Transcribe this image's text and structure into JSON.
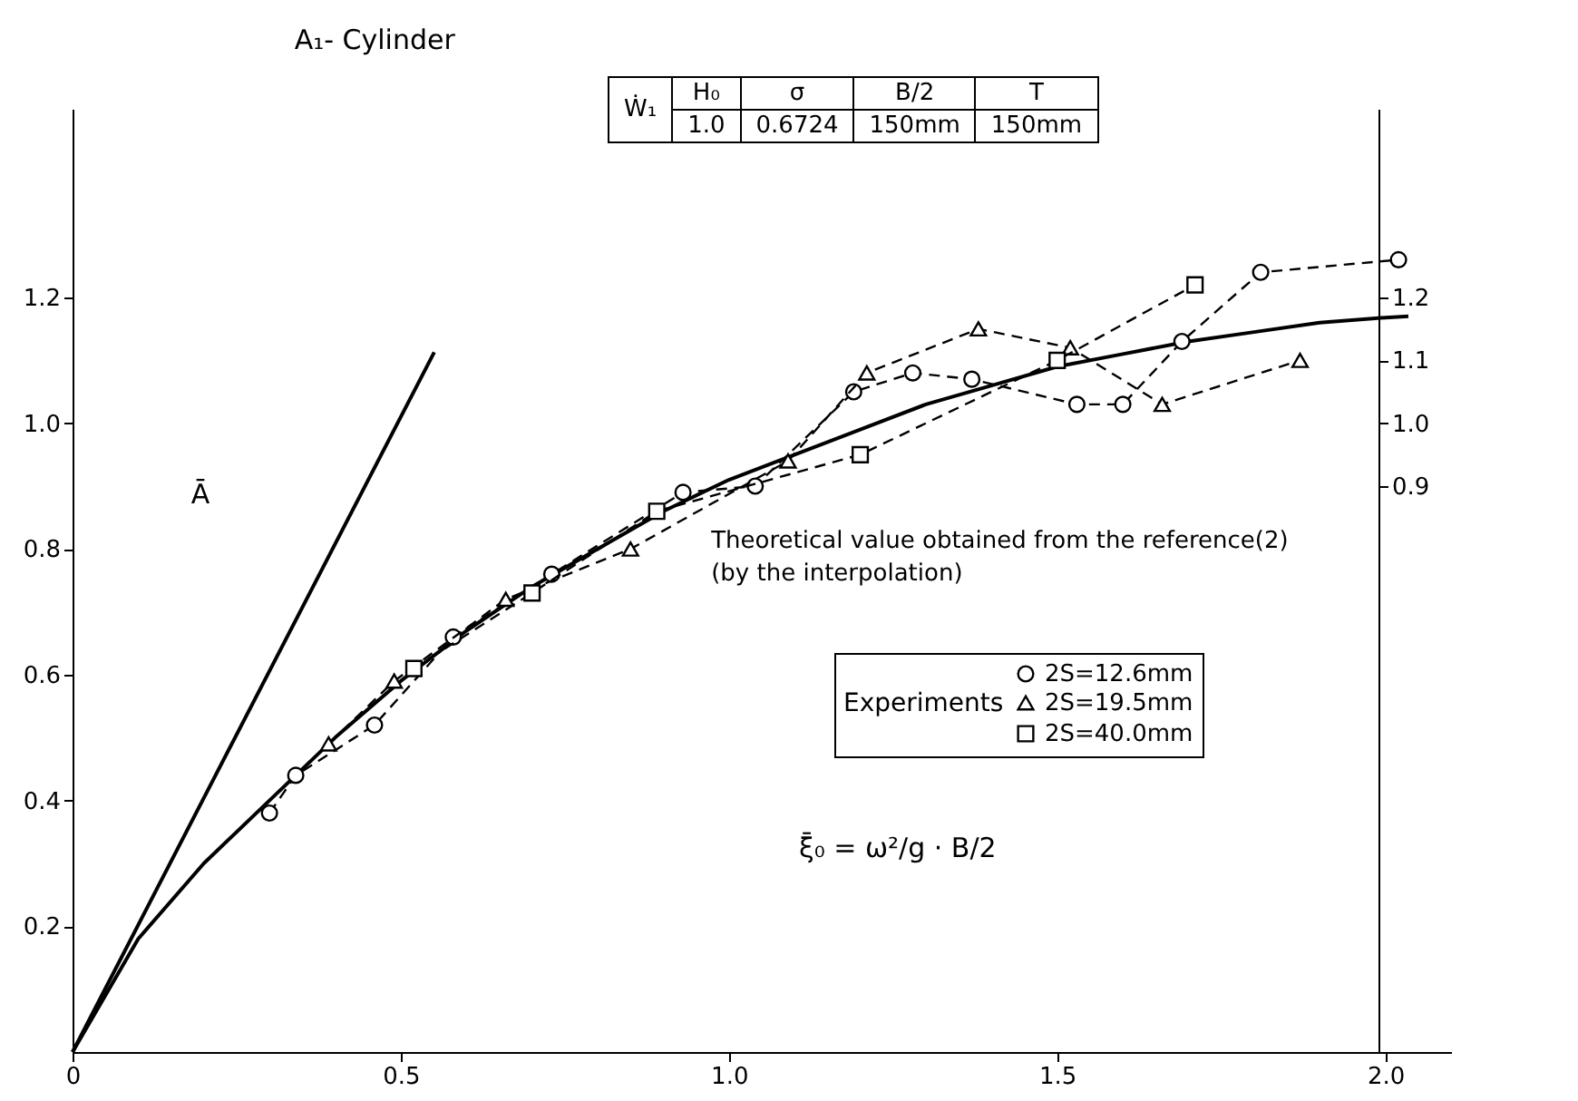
{
  "chart_data": {
    "type": "line",
    "title": "A₁- Cylinder",
    "xlabel": "ξ̄₀ = ω²/g · B/2",
    "ylabel": "Ā",
    "legend_title": "Experiments",
    "annotations": [
      "Ẇ₁",
      "H₀",
      "σ",
      "B/2",
      "T",
      "1.0",
      "0.6724",
      "150mm",
      "150mm",
      {
        "text": "Theoretical value obtained from the reference(2)\n(by the interpolation)",
        "x": 0.89,
        "y": 0.86
      }
    ],
    "xlim": [
      0,
      2.1
    ],
    "xticks": [
      {
        "value": 0,
        "label": "0"
      },
      0.5,
      {
        "value": 1,
        "label": "1.0"
      },
      1.5,
      {
        "value": 2,
        "label": "2.0"
      }
    ],
    "ylim": [
      0,
      1.5
    ],
    "yticks": [
      0.2,
      0.4,
      0.6,
      0.8,
      {
        "value": 1,
        "label": "1.0"
      },
      1.2
    ],
    "y2lim": [
      0,
      1.5
    ],
    "y2ticks": [
      0.9,
      {
        "value": 1,
        "label": "1.0"
      },
      1.1,
      1.2
    ],
    "grid": false,
    "legend": "right",
    "series": [
      {
        "color": "#000000",
        "marker": "none",
        "line_style": "solid",
        "x": [
          0,
          0.551
        ],
        "values": [
          0,
          1.113
        ]
      },
      {
        "color": "#000000",
        "marker": "none",
        "line_style": "solid",
        "x": [
          0,
          0.1,
          0.2,
          0.3,
          0.4,
          0.5,
          0.6,
          0.7,
          0.8,
          0.9,
          1.0,
          1.1,
          1.2,
          1.3,
          1.4,
          1.5,
          1.6,
          1.7,
          1.8,
          1.9,
          2.0,
          2.035
        ],
        "values": [
          0,
          0.18,
          0.3,
          0.4,
          0.5,
          0.59,
          0.67,
          0.74,
          0.8,
          0.86,
          0.91,
          0.95,
          0.99,
          1.03,
          1.06,
          1.09,
          1.11,
          1.13,
          1.145,
          1.16,
          1.168,
          1.17
        ]
      },
      {
        "name": "2S=12.6mm",
        "color": "#000000",
        "marker": "circle",
        "line_style": "dashed",
        "x": [
          0.3,
          0.34,
          0.46,
          0.58,
          0.73,
          0.93,
          1.04,
          1.19,
          1.28,
          1.37,
          1.53,
          1.6,
          1.69,
          1.81,
          2.02
        ],
        "values": [
          0.38,
          0.44,
          0.52,
          0.66,
          0.76,
          0.89,
          0.9,
          1.05,
          1.08,
          1.07,
          1.03,
          1.03,
          1.13,
          1.24,
          1.26
        ]
      },
      {
        "name": "2S=19.5mm",
        "color": "#000000",
        "marker": "triangle",
        "line_style": "dashed",
        "x": [
          0.39,
          0.49,
          0.66,
          0.85,
          1.09,
          1.21,
          1.38,
          1.52,
          1.66,
          1.87
        ],
        "values": [
          0.49,
          0.59,
          0.72,
          0.8,
          0.94,
          1.08,
          1.15,
          1.12,
          1.03,
          1.1
        ]
      },
      {
        "name": "2S=40.0mm",
        "color": "#000000",
        "marker": "square",
        "line_style": "dashed",
        "x": [
          0.52,
          0.7,
          0.89,
          1.2,
          1.5,
          1.71
        ],
        "values": [
          0.61,
          0.73,
          0.86,
          0.95,
          1.1,
          1.22
        ]
      }
    ]
  }
}
